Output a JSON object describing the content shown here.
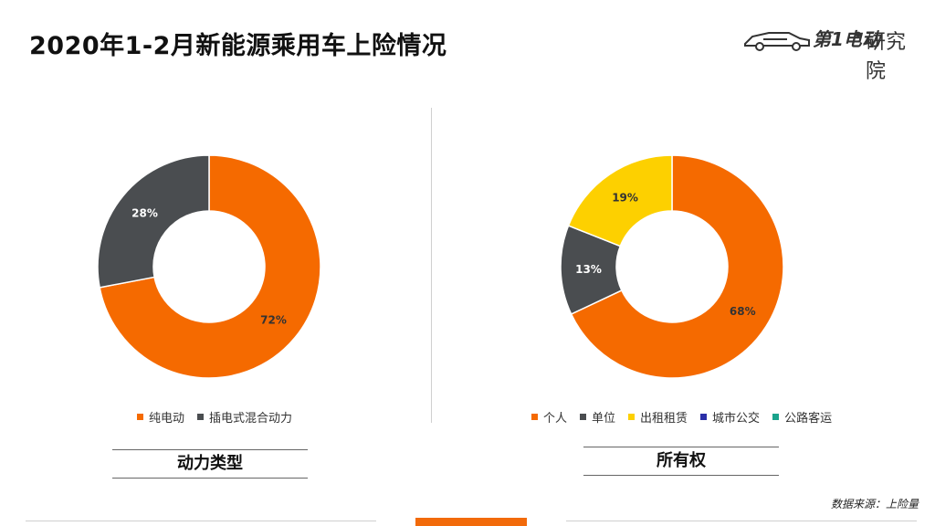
{
  "header": {
    "title": "2020年1-2月新能源乘用车上险情况",
    "logo": {
      "brand": "第1电动",
      "dot": "•",
      "institute": "研究院"
    }
  },
  "chart_data": [
    {
      "type": "pie",
      "variant": "donut",
      "caption": "动力类型",
      "categories": [
        "纯电动",
        "插电式混合动力"
      ],
      "values": [
        72,
        28
      ],
      "labels": [
        "72%",
        "28%"
      ],
      "colors": [
        "#f56a00",
        "#4a4d50"
      ],
      "legend_position": "bottom"
    },
    {
      "type": "pie",
      "variant": "donut",
      "caption": "所有权",
      "categories": [
        "个人",
        "单位",
        "出租租赁",
        "城市公交",
        "公路客运"
      ],
      "values": [
        68,
        13,
        19,
        0,
        0
      ],
      "labels": [
        "68%",
        "13%",
        "19%",
        "",
        ""
      ],
      "colors": [
        "#f56a00",
        "#4a4d50",
        "#fdd000",
        "#2b2fa8",
        "#1aa38c"
      ],
      "legend_position": "bottom"
    }
  ],
  "footer": {
    "source": "数据来源：上险量"
  }
}
